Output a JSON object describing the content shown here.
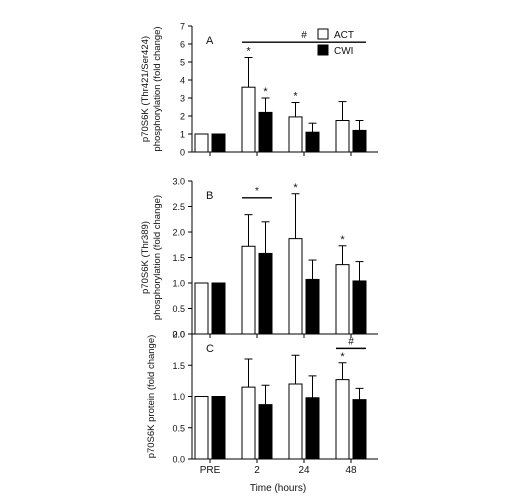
{
  "figure": {
    "categories": [
      "PRE",
      "2",
      "24",
      "48"
    ],
    "xlabel": "Time (hours)",
    "legend": {
      "entries": [
        {
          "name": "ACT",
          "fill": "#ffffff"
        },
        {
          "name": "CWI",
          "fill": "#000000"
        }
      ],
      "placement": "top-right of panel A"
    }
  },
  "chart_data": [
    {
      "type": "bar",
      "panel_label": "A",
      "ylabel_line1": "p70S6K (Thr421/Ser424)",
      "ylabel_line2": "phosphorylation (fold change)",
      "ylim": [
        0,
        7
      ],
      "yticks": [
        "0",
        "1",
        "2",
        "3",
        "4",
        "5",
        "6",
        "7"
      ],
      "categories": [
        "PRE",
        "2",
        "24",
        "48"
      ],
      "series": [
        {
          "name": "ACT",
          "values": [
            1.0,
            3.6,
            1.95,
            1.75
          ],
          "errors": [
            0,
            1.65,
            0.8,
            1.05
          ]
        },
        {
          "name": "CWI",
          "values": [
            1.0,
            2.2,
            1.1,
            1.2
          ],
          "errors": [
            0,
            0.8,
            0.5,
            0.55
          ]
        }
      ],
      "annotations": {
        "stars": [
          {
            "category": 1,
            "series": 0
          },
          {
            "category": 1,
            "series": 1
          },
          {
            "category": 2,
            "series": 0
          }
        ],
        "brackets": [
          {
            "from": [
              1,
              0
            ],
            "to": [
              3,
              1
            ],
            "y": 6.1,
            "label": "#"
          }
        ]
      }
    },
    {
      "type": "bar",
      "panel_label": "B",
      "ylabel_line1": "p70S6K (Thr389)",
      "ylabel_line2": "phosphorylation (fold change)",
      "ylim": [
        0,
        3.0
      ],
      "yticks": [
        "0.0",
        "0.5",
        "1.0",
        "1.5",
        "2.0",
        "2.5",
        "3.0"
      ],
      "categories": [
        "PRE",
        "2",
        "24",
        "48"
      ],
      "series": [
        {
          "name": "ACT",
          "values": [
            1.0,
            1.72,
            1.87,
            1.36
          ],
          "errors": [
            0,
            0.62,
            0.88,
            0.37
          ]
        },
        {
          "name": "CWI",
          "values": [
            1.0,
            1.58,
            1.07,
            1.04
          ],
          "errors": [
            0,
            0.62,
            0.38,
            0.38
          ]
        }
      ],
      "annotations": {
        "stars": [
          {
            "category": 2,
            "series": 0
          },
          {
            "category": 3,
            "series": 0
          }
        ],
        "brackets": [
          {
            "from": [
              1,
              0
            ],
            "to": [
              1,
              1
            ],
            "y": 2.67,
            "label": "*"
          }
        ]
      }
    },
    {
      "type": "bar",
      "panel_label": "C",
      "ylabel_line1": "p70S6K protein (fold change)",
      "ylabel_line2": "",
      "ylim": [
        0,
        2.0
      ],
      "yticks": [
        "0.0",
        "0.5",
        "1.0",
        "1.5",
        "2.0"
      ],
      "categories": [
        "PRE",
        "2",
        "24",
        "48"
      ],
      "series": [
        {
          "name": "ACT",
          "values": [
            1.0,
            1.15,
            1.2,
            1.27
          ],
          "errors": [
            0,
            0.45,
            0.46,
            0.27
          ]
        },
        {
          "name": "CWI",
          "values": [
            1.0,
            0.87,
            0.98,
            0.95
          ],
          "errors": [
            0,
            0.31,
            0.35,
            0.18
          ]
        }
      ],
      "annotations": {
        "stars": [
          {
            "category": 3,
            "series": 0
          }
        ],
        "brackets": [
          {
            "from": [
              3,
              0
            ],
            "to": [
              3,
              1
            ],
            "y": 1.77,
            "label": "#"
          }
        ]
      }
    }
  ]
}
